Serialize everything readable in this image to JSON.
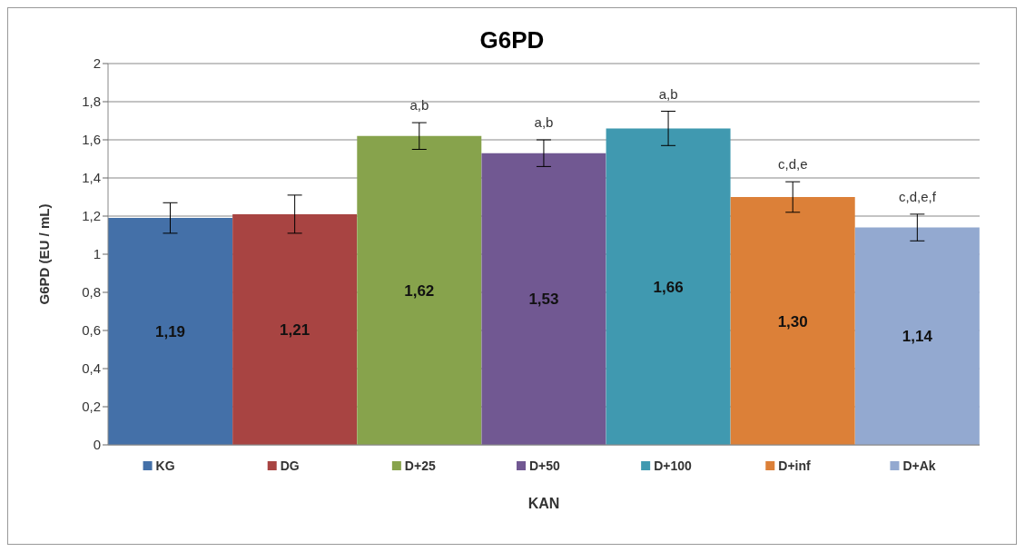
{
  "chart_data": {
    "type": "bar",
    "title": "G6PD",
    "xlabel": "KAN",
    "ylabel": "G6PD (EU / mL)",
    "categories": [
      "KG",
      "DG",
      "D+25",
      "D+50",
      "D+100",
      "D+inf",
      "D+Ak"
    ],
    "values": [
      1.19,
      1.21,
      1.62,
      1.53,
      1.66,
      1.3,
      1.14
    ],
    "colors": [
      "#4470a8",
      "#a84442",
      "#87a34c",
      "#715892",
      "#4099b0",
      "#dc8038",
      "#93a9d0"
    ],
    "errors": [
      0.08,
      0.1,
      0.07,
      0.07,
      0.09,
      0.08,
      0.07
    ],
    "value_labels": [
      "1,19",
      "1,21",
      "1,62",
      "1,53",
      "1,66",
      "1,30",
      "1,14"
    ],
    "annotations": [
      {
        "text": "a,b",
        "x": "D+25",
        "y": 1.69
      },
      {
        "text": "a,b",
        "x": "D+50",
        "y": 1.6
      },
      {
        "text": "a,b",
        "x": "D+100",
        "y": 1.75
      },
      {
        "text": "c,d,e",
        "x": "D+inf",
        "y": 1.38
      },
      {
        "text": "c,d,e,f",
        "x": "D+Ak",
        "y": 1.21
      }
    ],
    "ylim": [
      0,
      2
    ],
    "yticks": [
      0,
      {
        "value": 0.2,
        "label": "0,2"
      },
      {
        "value": 0.4,
        "label": "0,4"
      },
      {
        "value": 0.6,
        "label": "0,6"
      },
      {
        "value": 0.8,
        "label": "0,8"
      },
      1,
      {
        "value": 1.2,
        "label": "1,2"
      },
      {
        "value": 1.4,
        "label": "1,4"
      },
      {
        "value": 1.6,
        "label": "1,6"
      },
      {
        "value": 1.8,
        "label": "1,8"
      },
      2
    ],
    "grid": "y"
  }
}
